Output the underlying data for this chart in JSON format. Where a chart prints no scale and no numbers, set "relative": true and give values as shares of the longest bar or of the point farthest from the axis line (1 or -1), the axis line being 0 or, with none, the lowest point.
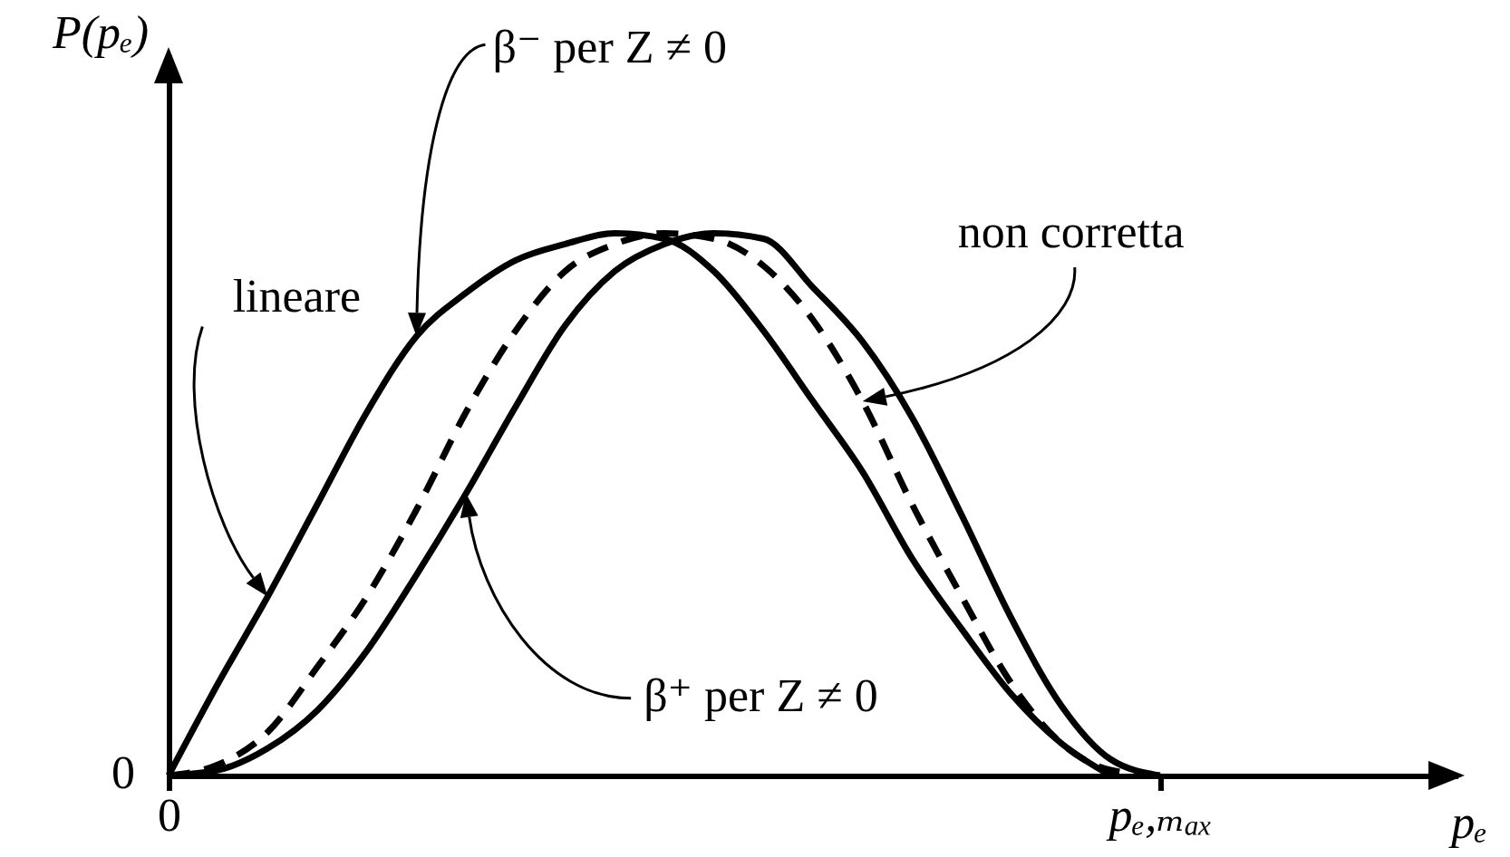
{
  "chart_data": {
    "type": "line",
    "relative": true,
    "xlabel": "pₑ",
    "ylabel": "P(pₑ)",
    "categories": [
      "0",
      null,
      null,
      null,
      null,
      null,
      null,
      null,
      null,
      null,
      null,
      null,
      null,
      null,
      null,
      null,
      null,
      null,
      null,
      null,
      "pₑ,ₘₐₓ",
      null,
      null,
      null,
      null,
      null,
      null
    ],
    "series": [
      {
        "color": "#000000",
        "values": [
          0,
          0.17,
          0.33,
          0.5,
          0.67,
          0.81,
          0.89,
          0.95,
          0.98,
          1,
          0.99,
          0.93,
          0.82,
          0.69,
          0.56,
          0.4,
          0.27,
          0.15,
          0.06,
          0,
          null,
          null,
          null,
          null,
          null,
          null,
          null
        ]
      },
      {
        "color": "#000000",
        "line_style": "dashed",
        "values": [
          0,
          0.02,
          0.08,
          0.2,
          0.33,
          0.49,
          0.67,
          0.82,
          0.93,
          0.98,
          1,
          0.99,
          0.94,
          0.84,
          0.69,
          0.5,
          0.33,
          0.17,
          0.06,
          0.01,
          0,
          null,
          null,
          null,
          null,
          null,
          null
        ]
      },
      {
        "color": "#000000",
        "values": [
          0,
          0.01,
          0.05,
          0.12,
          0.23,
          0.37,
          0.52,
          0.68,
          0.83,
          0.93,
          0.98,
          1,
          0.99,
          0.9,
          0.8,
          0.66,
          0.48,
          0.29,
          0.13,
          0.03,
          0,
          null,
          null,
          null,
          null,
          null,
          null
        ]
      }
    ],
    "annotations": [
      "β⁻ per Z ≠ 0",
      "lineare",
      "non corretta",
      "β⁺ per Z ≠ 0",
      "0"
    ]
  }
}
